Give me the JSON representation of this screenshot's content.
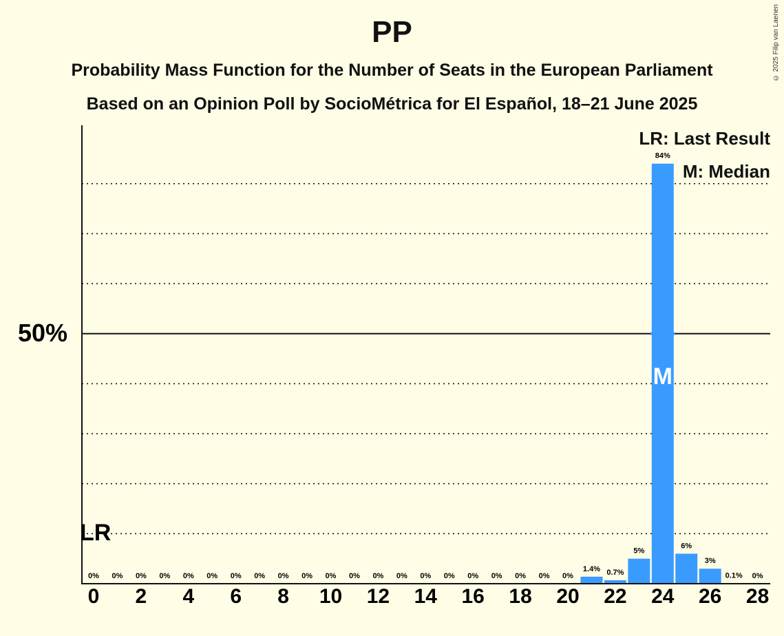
{
  "header": {
    "title": "PP",
    "subtitle1": "Probability Mass Function for the Number of Seats in the European Parliament",
    "subtitle2": "Based on an Opinion Poll by SocioMétrica for El Español, 18–21 June 2025",
    "copyright": "© 2025 Filip van Laenen"
  },
  "legend": {
    "last_result": "LR: Last Result",
    "median": "M: Median"
  },
  "markers": {
    "last_result_label": "LR",
    "last_result_seat": 0,
    "median_label": "M",
    "median_seat": 24
  },
  "colors": {
    "bar": "#3a9bff",
    "background": "#fffde6"
  },
  "chart_data": {
    "type": "bar",
    "x": [
      0,
      1,
      2,
      3,
      4,
      5,
      6,
      7,
      8,
      9,
      10,
      11,
      12,
      13,
      14,
      15,
      16,
      17,
      18,
      19,
      20,
      21,
      22,
      23,
      24,
      25,
      26,
      27,
      28
    ],
    "values": [
      0,
      0,
      0,
      0,
      0,
      0,
      0,
      0,
      0,
      0,
      0,
      0,
      0,
      0,
      0,
      0,
      0,
      0,
      0,
      0,
      0,
      1.4,
      0.7,
      5,
      84,
      6,
      3,
      0.1,
      0
    ],
    "data_labels": [
      "0%",
      "0%",
      "0%",
      "0%",
      "0%",
      "0%",
      "0%",
      "0%",
      "0%",
      "0%",
      "0%",
      "0%",
      "0%",
      "0%",
      "0%",
      "0%",
      "0%",
      "0%",
      "0%",
      "0%",
      "0%",
      "1.4%",
      "0.7%",
      "5%",
      "84%",
      "6%",
      "3%",
      "0.1%",
      "0%"
    ],
    "x_tick_labels": [
      "0",
      "2",
      "4",
      "6",
      "8",
      "10",
      "12",
      "14",
      "16",
      "18",
      "20",
      "22",
      "24",
      "26",
      "28"
    ],
    "y_tick_label": "50%",
    "ylim": [
      0,
      92
    ],
    "grid": "dotted every 10%, solid at 50%"
  }
}
